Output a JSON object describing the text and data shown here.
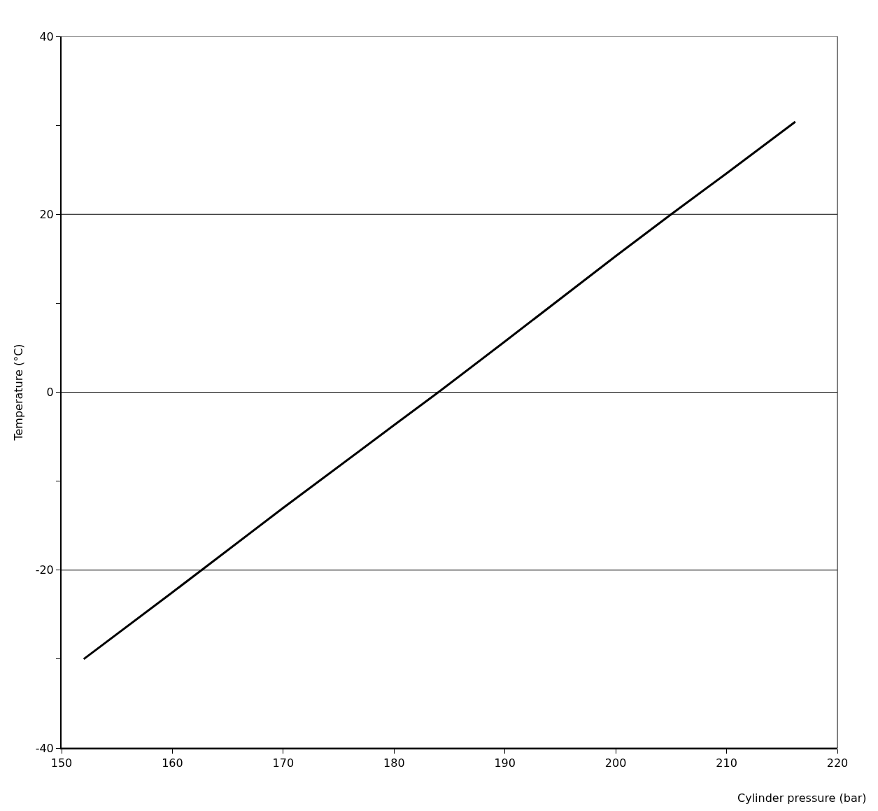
{
  "chart_data": {
    "type": "line",
    "xlabel": "Cylinder pressure (bar)",
    "ylabel": "Temperature (°C)",
    "x": [
      152,
      160,
      170,
      180,
      184,
      190,
      200,
      205,
      210,
      216.2
    ],
    "series": [
      {
        "color": "#000000",
        "values": [
          -30,
          -22.5,
          -13,
          -3.7,
          0,
          5.7,
          15.3,
          20,
          24.6,
          30.4
        ]
      }
    ],
    "xlim": [
      150,
      220
    ],
    "xticks": [
      150,
      160,
      170,
      180,
      190,
      200,
      210,
      220
    ],
    "ylim": [
      -40,
      40
    ],
    "yticks": [
      -40,
      {
        "value": -30,
        "label": null
      },
      -20,
      {
        "value": -10,
        "label": null
      },
      0,
      {
        "value": 10,
        "label": null
      },
      20,
      {
        "value": 30,
        "label": null
      },
      40
    ],
    "grid": "y",
    "marker": "none",
    "line_style": "solid"
  }
}
